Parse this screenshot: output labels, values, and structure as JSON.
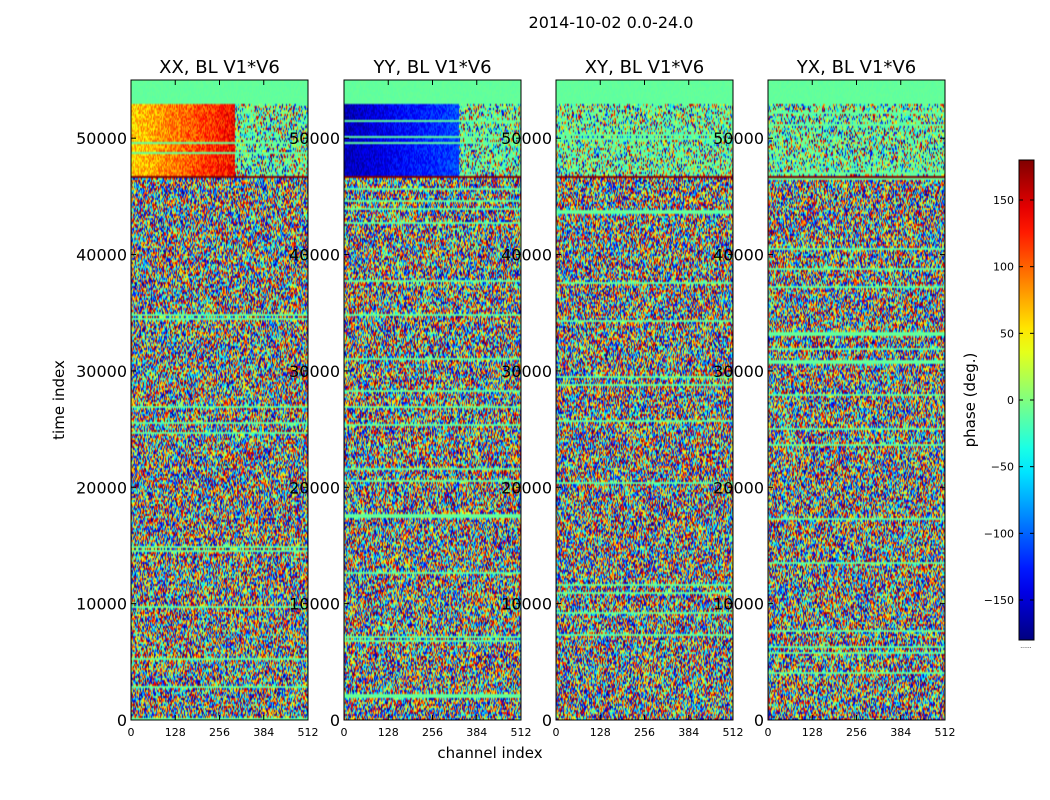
{
  "figure_title": "2014-10-02 0.0-24.0",
  "chart_data": [
    {
      "type": "heatmap",
      "title": "XX, BL V1*V6",
      "xlabel": "channel index",
      "ylabel": "time index",
      "xlim": [
        0,
        512
      ],
      "ylim": [
        0,
        55000
      ],
      "xticks": [
        0,
        128,
        256,
        384,
        512
      ],
      "yticks": [
        0,
        10000,
        20000,
        30000,
        40000,
        50000
      ],
      "value_range": [
        -180,
        180
      ],
      "pattern": "random phase noise; coherent warm phase (about 60 to 150 deg) between time index 47000 and 53000"
    },
    {
      "type": "heatmap",
      "title": "YY, BL V1*V6",
      "xlabel": "channel index",
      "xlim": [
        0,
        512
      ],
      "ylim": [
        0,
        55000
      ],
      "xticks": [
        0,
        128,
        256,
        384,
        512
      ],
      "yticks": [
        0,
        10000,
        20000,
        30000,
        40000,
        50000
      ],
      "value_range": [
        -180,
        180
      ],
      "pattern": "random phase noise; coherent cold phase (about -170 to -100 deg) between time index 47000 and 53000"
    },
    {
      "type": "heatmap",
      "title": "XY, BL V1*V6",
      "xlim": [
        0,
        512
      ],
      "ylim": [
        0,
        55000
      ],
      "xticks": [
        0,
        128,
        256,
        384,
        512
      ],
      "yticks": [
        0,
        10000,
        20000,
        30000,
        40000,
        50000
      ],
      "value_range": [
        -180,
        180
      ],
      "pattern": "random phase noise"
    },
    {
      "type": "heatmap",
      "title": "YX, BL V1*V6",
      "xlim": [
        0,
        512
      ],
      "ylim": [
        0,
        55000
      ],
      "xticks": [
        0,
        128,
        256,
        384,
        512
      ],
      "yticks": [
        0,
        10000,
        20000,
        30000,
        40000,
        50000
      ],
      "value_range": [
        -180,
        180
      ],
      "pattern": "random phase noise"
    }
  ],
  "colorbar": {
    "label": "phase (deg.)",
    "range": [
      -180,
      180
    ],
    "ticks": [
      150,
      100,
      50,
      0,
      -50,
      -100,
      -150
    ],
    "tick_labels": [
      "150",
      "100",
      "50",
      "0",
      "−50",
      "−100",
      "−150"
    ],
    "colormap": "jet",
    "footer": "......"
  }
}
